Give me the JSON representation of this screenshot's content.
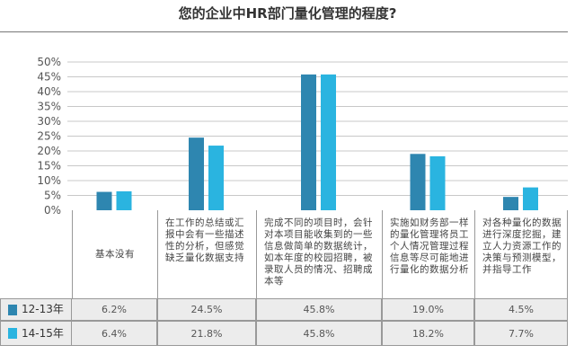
{
  "chart_data": {
    "type": "bar",
    "title": "您的企业中HR部门量化管理的程度?",
    "categories": [
      "基本没有",
      "在工作的总结或汇报中会有一些描述性的分析，但感觉缺乏量化数据支持",
      "完成不同的项目时，会针对本项目能收集到的一些信息做简单的数据统计，如本年度的校园招聘，被录取人员的情况、招聘成本等",
      "实施如财务部一样的量化管理将员工个人情况管理过程信息等尽可能地进行量化的数据分析",
      "对各种量化的数据进行深度挖掘，建立人力资源工作的决策与预测模型，并指导工作"
    ],
    "series": [
      {
        "name": "12-13年",
        "color": "#2e86b0",
        "values": [
          6.2,
          24.5,
          45.8,
          19.0,
          4.5
        ],
        "labels": [
          "6.2%",
          "24.5%",
          "45.8%",
          "19.0%",
          "4.5%"
        ]
      },
      {
        "name": "14-15年",
        "color": "#2ab4e0",
        "values": [
          6.4,
          21.8,
          45.8,
          18.2,
          7.7
        ],
        "labels": [
          "6.4%",
          "21.8%",
          "45.8%",
          "18.2%",
          "7.7%"
        ]
      }
    ],
    "ylim": [
      0,
      50
    ],
    "yticks": [
      "0%",
      "5%",
      "10%",
      "15%",
      "20%",
      "25%",
      "30%",
      "35%",
      "40%",
      "45%",
      "50%"
    ],
    "grid": true,
    "legend": "data-table-left"
  }
}
